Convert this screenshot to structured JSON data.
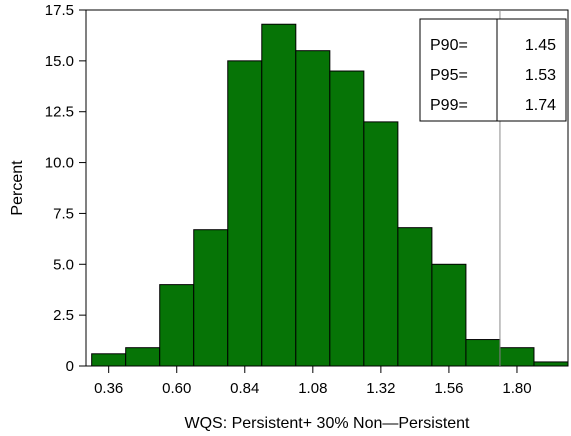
{
  "chart_data": {
    "type": "bar",
    "subtype": "histogram",
    "title": "",
    "xlabel": "WQS:  Persistent+ 30%  Non—Persistent",
    "ylabel": "Percent",
    "bar_color": "#067406",
    "bar_edge_color": "#000000",
    "bins": [
      {
        "lo": 0.3,
        "hi": 0.42,
        "value": 0.6
      },
      {
        "lo": 0.42,
        "hi": 0.54,
        "value": 0.9
      },
      {
        "lo": 0.54,
        "hi": 0.66,
        "value": 4.0
      },
      {
        "lo": 0.66,
        "hi": 0.78,
        "value": 6.7
      },
      {
        "lo": 0.78,
        "hi": 0.9,
        "value": 15.0
      },
      {
        "lo": 0.9,
        "hi": 1.02,
        "value": 16.8
      },
      {
        "lo": 1.02,
        "hi": 1.14,
        "value": 15.5
      },
      {
        "lo": 1.14,
        "hi": 1.26,
        "value": 14.5
      },
      {
        "lo": 1.26,
        "hi": 1.38,
        "value": 12.0
      },
      {
        "lo": 1.38,
        "hi": 1.5,
        "value": 6.8
      },
      {
        "lo": 1.5,
        "hi": 1.62,
        "value": 5.0
      },
      {
        "lo": 1.62,
        "hi": 1.74,
        "value": 1.3
      },
      {
        "lo": 1.74,
        "hi": 1.86,
        "value": 0.9
      },
      {
        "lo": 1.86,
        "hi": 1.98,
        "value": 0.2
      }
    ],
    "xlim": [
      0.28,
      1.98
    ],
    "ylim": [
      0,
      17.5
    ],
    "xticks": [
      0.36,
      0.6,
      0.84,
      1.08,
      1.32,
      1.56,
      1.8
    ],
    "xtick_labels": [
      "0.36",
      "0.60",
      "0.84",
      "1.08",
      "1.32",
      "1.56",
      "1.80"
    ],
    "yticks": [
      0,
      2.5,
      5.0,
      7.5,
      10.0,
      12.5,
      15.0,
      17.5
    ],
    "ytick_labels": [
      "0",
      "2.5",
      "5.0",
      "7.5",
      "10.0",
      "12.5",
      "15.0",
      "17.5"
    ],
    "reference_line_x": 1.74,
    "grid": false,
    "stats_box_position": "top-right",
    "stats": [
      {
        "label": "P90=",
        "value": "1.45"
      },
      {
        "label": "P95=",
        "value": "1.53"
      },
      {
        "label": "P99=",
        "value": "1.74"
      }
    ]
  }
}
